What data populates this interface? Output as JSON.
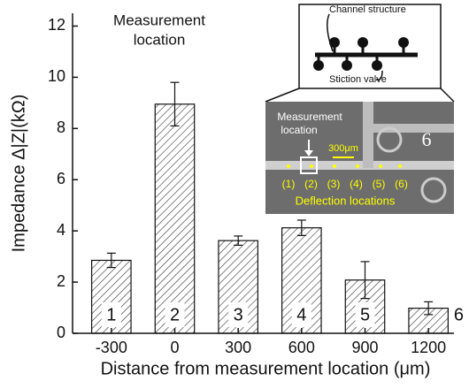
{
  "chart_data": {
    "type": "bar",
    "x_label": "Distance from measurement location (μm)",
    "y_label": "Impedance Δ|Z|(kΩ)",
    "annotation": [
      "Measurement",
      "location"
    ],
    "categories": [
      "-300",
      "0",
      "300",
      "600",
      "900",
      "1200"
    ],
    "values": [
      2.85,
      8.95,
      3.62,
      4.12,
      2.08,
      0.98
    ],
    "errors": [
      0.28,
      0.85,
      0.18,
      0.3,
      0.72,
      0.25
    ],
    "bar_labels": [
      "1",
      "2",
      "3",
      "4",
      "5",
      "6"
    ],
    "color": "#333333",
    "ylim": [
      0,
      12.5
    ],
    "yticks": [
      0,
      2,
      4,
      6,
      8,
      10,
      12
    ]
  },
  "inset": {
    "schematic": {
      "channel": "Channel structure",
      "valve": "Stiction valve"
    },
    "micrograph": {
      "measurement": [
        "Measurement",
        "location"
      ],
      "scale": "300μm",
      "positions": [
        "(1)",
        "(2)",
        "(3)",
        "(4)",
        "(5)",
        "(6)"
      ],
      "deflection": "Deflection locations",
      "chip_number": "6"
    }
  }
}
